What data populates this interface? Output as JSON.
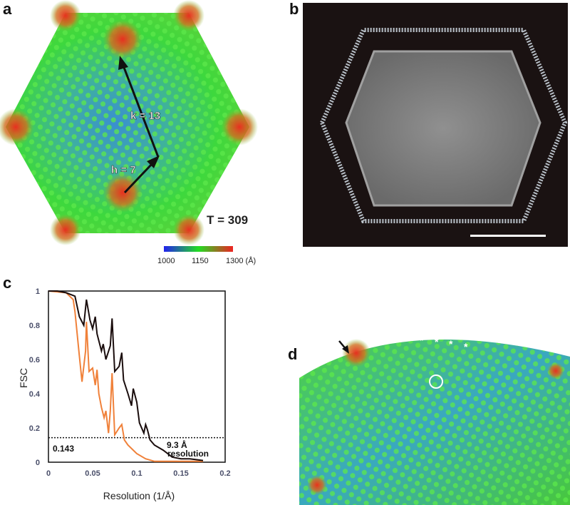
{
  "panels": {
    "a": {
      "label": "a",
      "k_label": "k = 13",
      "h_label": "h = 7",
      "t_label": "T = 309",
      "colorbar": {
        "ticks": [
          "1000",
          "1150",
          "1300 (Å)"
        ],
        "colors": [
          "#2222ee",
          "#22dd22",
          "#ee2222"
        ]
      }
    },
    "b": {
      "label": "b"
    },
    "c": {
      "label": "c"
    },
    "d": {
      "label": "d",
      "asterisks": [
        "*",
        "*",
        "*",
        "*",
        "*",
        "*"
      ]
    }
  },
  "chart_data": {
    "type": "line",
    "title": "",
    "xlabel": "Resolution (1/Å)",
    "ylabel": "FSC",
    "xlim": [
      0,
      0.2
    ],
    "ylim": [
      0,
      1
    ],
    "xticks": [
      "0",
      "0.05",
      "0.1",
      "0.15",
      "0.2"
    ],
    "yticks": [
      "0",
      "0.2",
      "0.4",
      "0.6",
      "0.8",
      "1"
    ],
    "threshold": {
      "value": 0.143,
      "label": "0.143"
    },
    "annotation": [
      "9.3 Å",
      "resolution"
    ],
    "series": [
      {
        "name": "black",
        "color": "#1a0d0d",
        "x": [
          0,
          0.01,
          0.02,
          0.03,
          0.035,
          0.04,
          0.043,
          0.047,
          0.05,
          0.053,
          0.055,
          0.06,
          0.062,
          0.065,
          0.07,
          0.072,
          0.075,
          0.08,
          0.083,
          0.085,
          0.09,
          0.094,
          0.096,
          0.1,
          0.103,
          0.108,
          0.11,
          0.112,
          0.115,
          0.12,
          0.13,
          0.14,
          0.15,
          0.16,
          0.175
        ],
        "y": [
          1,
          1,
          0.99,
          0.97,
          0.85,
          0.8,
          0.95,
          0.83,
          0.78,
          0.85,
          0.75,
          0.65,
          0.69,
          0.6,
          0.68,
          0.84,
          0.53,
          0.56,
          0.64,
          0.48,
          0.4,
          0.33,
          0.43,
          0.35,
          0.23,
          0.17,
          0.22,
          0.19,
          0.13,
          0.1,
          0.07,
          0.03,
          0.02,
          0.02,
          0.01
        ]
      },
      {
        "name": "orange",
        "color": "#f0813a",
        "x": [
          0,
          0.02,
          0.028,
          0.03,
          0.035,
          0.038,
          0.042,
          0.043,
          0.046,
          0.05,
          0.053,
          0.055,
          0.057,
          0.06,
          0.063,
          0.065,
          0.068,
          0.07,
          0.072,
          0.075,
          0.08,
          0.083,
          0.086,
          0.09,
          0.1,
          0.11,
          0.12,
          0.14,
          0.175
        ],
        "y": [
          1,
          0.99,
          0.95,
          0.88,
          0.62,
          0.47,
          0.65,
          0.82,
          0.53,
          0.55,
          0.45,
          0.54,
          0.4,
          0.32,
          0.26,
          0.3,
          0.17,
          0.3,
          0.52,
          0.16,
          0.2,
          0.22,
          0.13,
          0.1,
          0.05,
          0.02,
          0.005,
          0.005,
          0.005
        ]
      }
    ]
  }
}
